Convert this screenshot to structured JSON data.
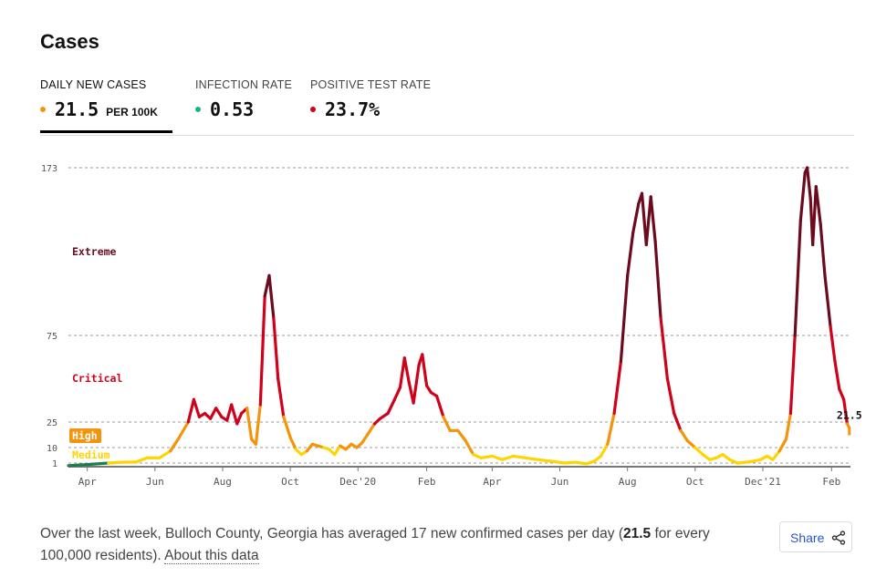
{
  "title": "Cases",
  "tabs": [
    {
      "label": "DAILY NEW CASES",
      "value": "21.5",
      "unit": "PER 100K",
      "dot_color": "#f5930b"
    },
    {
      "label": "INFECTION RATE",
      "value": "0.53",
      "unit": "",
      "dot_color": "#14b97a"
    },
    {
      "label": "POSITIVE TEST RATE",
      "value": "23.7%",
      "unit": "",
      "dot_color": "#d0021b"
    }
  ],
  "footer": {
    "text_before": "Over the last week, Bulloch County, Georgia has averaged 17 new confirmed cases per day (",
    "bold_value": "21.5",
    "text_after": " for every 100,000 residents).",
    "link": "About this data"
  },
  "share_label": "Share",
  "chart_data": {
    "type": "line",
    "ylabel": "",
    "y_ticks": [
      1,
      10,
      25,
      75,
      173
    ],
    "y_tick_labels": [
      "1",
      "10",
      "25",
      "75",
      "173"
    ],
    "grid": true,
    "x_start": "2020-03-15",
    "x_end": "2022-02-18",
    "x_ticks": [
      {
        "date": "2020-04-01",
        "label": "Apr"
      },
      {
        "date": "2020-06-01",
        "label": "Jun"
      },
      {
        "date": "2020-08-01",
        "label": "Aug"
      },
      {
        "date": "2020-10-01",
        "label": "Oct"
      },
      {
        "date": "2020-12-01",
        "label": "Dec'20"
      },
      {
        "date": "2021-02-01",
        "label": "Feb"
      },
      {
        "date": "2021-04-01",
        "label": "Apr"
      },
      {
        "date": "2021-06-01",
        "label": "Jun"
      },
      {
        "date": "2021-08-01",
        "label": "Aug"
      },
      {
        "date": "2021-10-01",
        "label": "Oct"
      },
      {
        "date": "2021-12-01",
        "label": "Dec'21"
      },
      {
        "date": "2022-02-01",
        "label": "Feb"
      }
    ],
    "zones": [
      {
        "label": "Extreme",
        "color": "#6d0b1e"
      },
      {
        "label": "Critical",
        "color": "#d0021b"
      },
      {
        "label": "High",
        "color": "#ffffff",
        "background": "#f5930b"
      },
      {
        "label": "Medium",
        "color": "#ffd400"
      }
    ],
    "level_colors": {
      "low": "#1b7f4a",
      "medium": "#ffd400",
      "high": "#f5930b",
      "critical": "#d0021b",
      "extreme": "#6d0b1e"
    },
    "last_value_label": "21.5",
    "series": [
      {
        "points": [
          [
            "2020-03-15",
            0.3
          ],
          [
            "2020-04-01",
            0.6
          ],
          [
            "2020-04-20",
            1
          ],
          [
            "2020-05-01",
            1.5
          ],
          [
            "2020-05-15",
            1.6
          ],
          [
            "2020-05-25",
            4
          ],
          [
            "2020-06-05",
            4
          ],
          [
            "2020-06-15",
            8
          ],
          [
            "2020-06-22",
            15
          ],
          [
            "2020-07-01",
            25
          ],
          [
            "2020-07-06",
            38
          ],
          [
            "2020-07-11",
            28
          ],
          [
            "2020-07-16",
            30
          ],
          [
            "2020-07-21",
            27
          ],
          [
            "2020-07-26",
            33
          ],
          [
            "2020-07-31",
            28
          ],
          [
            "2020-08-05",
            26
          ],
          [
            "2020-08-09",
            35
          ],
          [
            "2020-08-14",
            24
          ],
          [
            "2020-08-18",
            30
          ],
          [
            "2020-08-23",
            33
          ],
          [
            "2020-08-27",
            15
          ],
          [
            "2020-08-31",
            12
          ],
          [
            "2020-09-04",
            35
          ],
          [
            "2020-09-08",
            98
          ],
          [
            "2020-09-12",
            110
          ],
          [
            "2020-09-16",
            85
          ],
          [
            "2020-09-20",
            50
          ],
          [
            "2020-09-25",
            28
          ],
          [
            "2020-10-01",
            16
          ],
          [
            "2020-10-06",
            9
          ],
          [
            "2020-10-11",
            6
          ],
          [
            "2020-10-16",
            8
          ],
          [
            "2020-10-21",
            12
          ],
          [
            "2020-10-26",
            11
          ],
          [
            "2020-10-31",
            10
          ],
          [
            "2020-11-05",
            9
          ],
          [
            "2020-11-10",
            6
          ],
          [
            "2020-11-15",
            11
          ],
          [
            "2020-11-20",
            9
          ],
          [
            "2020-11-25",
            12
          ],
          [
            "2020-11-30",
            10
          ],
          [
            "2020-12-05",
            13
          ],
          [
            "2020-12-10",
            18
          ],
          [
            "2020-12-16",
            24
          ],
          [
            "2020-12-21",
            27
          ],
          [
            "2020-12-28",
            30
          ],
          [
            "2021-01-03",
            38
          ],
          [
            "2021-01-08",
            45
          ],
          [
            "2021-01-12",
            62
          ],
          [
            "2021-01-16",
            48
          ],
          [
            "2021-01-20",
            36
          ],
          [
            "2021-01-25",
            58
          ],
          [
            "2021-01-28",
            64
          ],
          [
            "2021-02-01",
            46
          ],
          [
            "2021-02-05",
            42
          ],
          [
            "2021-02-10",
            40
          ],
          [
            "2021-02-16",
            28
          ],
          [
            "2021-02-22",
            20
          ],
          [
            "2021-03-01",
            20
          ],
          [
            "2021-03-08",
            14
          ],
          [
            "2021-03-15",
            6
          ],
          [
            "2021-03-22",
            4
          ],
          [
            "2021-04-01",
            5
          ],
          [
            "2021-04-10",
            3
          ],
          [
            "2021-04-20",
            5
          ],
          [
            "2021-05-01",
            4
          ],
          [
            "2021-05-12",
            3
          ],
          [
            "2021-05-25",
            2
          ],
          [
            "2021-06-05",
            1
          ],
          [
            "2021-06-15",
            1.5
          ],
          [
            "2021-06-25",
            0.8
          ],
          [
            "2021-07-02",
            2
          ],
          [
            "2021-07-08",
            5
          ],
          [
            "2021-07-14",
            12
          ],
          [
            "2021-07-20",
            30
          ],
          [
            "2021-07-26",
            60
          ],
          [
            "2021-08-01",
            110
          ],
          [
            "2021-08-06",
            135
          ],
          [
            "2021-08-11",
            152
          ],
          [
            "2021-08-14",
            158
          ],
          [
            "2021-08-18",
            128
          ],
          [
            "2021-08-22",
            156
          ],
          [
            "2021-08-26",
            130
          ],
          [
            "2021-08-31",
            85
          ],
          [
            "2021-09-06",
            50
          ],
          [
            "2021-09-12",
            30
          ],
          [
            "2021-09-18",
            20
          ],
          [
            "2021-09-24",
            14
          ],
          [
            "2021-10-01",
            10
          ],
          [
            "2021-10-08",
            6
          ],
          [
            "2021-10-14",
            3
          ],
          [
            "2021-10-20",
            4
          ],
          [
            "2021-10-26",
            6
          ],
          [
            "2021-11-01",
            3
          ],
          [
            "2021-11-08",
            1
          ],
          [
            "2021-11-15",
            1.5
          ],
          [
            "2021-11-22",
            2
          ],
          [
            "2021-11-29",
            3
          ],
          [
            "2021-12-05",
            5
          ],
          [
            "2021-12-10",
            3
          ],
          [
            "2021-12-16",
            8
          ],
          [
            "2021-12-22",
            15
          ],
          [
            "2021-12-26",
            30
          ],
          [
            "2021-12-30",
            75
          ],
          [
            "2022-01-04",
            142
          ],
          [
            "2022-01-08",
            170
          ],
          [
            "2022-01-10",
            173
          ],
          [
            "2022-01-13",
            155
          ],
          [
            "2022-01-15",
            128
          ],
          [
            "2022-01-18",
            162
          ],
          [
            "2022-01-22",
            140
          ],
          [
            "2022-01-26",
            110
          ],
          [
            "2022-01-31",
            80
          ],
          [
            "2022-02-04",
            60
          ],
          [
            "2022-02-08",
            44
          ],
          [
            "2022-02-12",
            38
          ],
          [
            "2022-02-15",
            24
          ],
          [
            "2022-02-17",
            21.5
          ]
        ]
      }
    ]
  }
}
